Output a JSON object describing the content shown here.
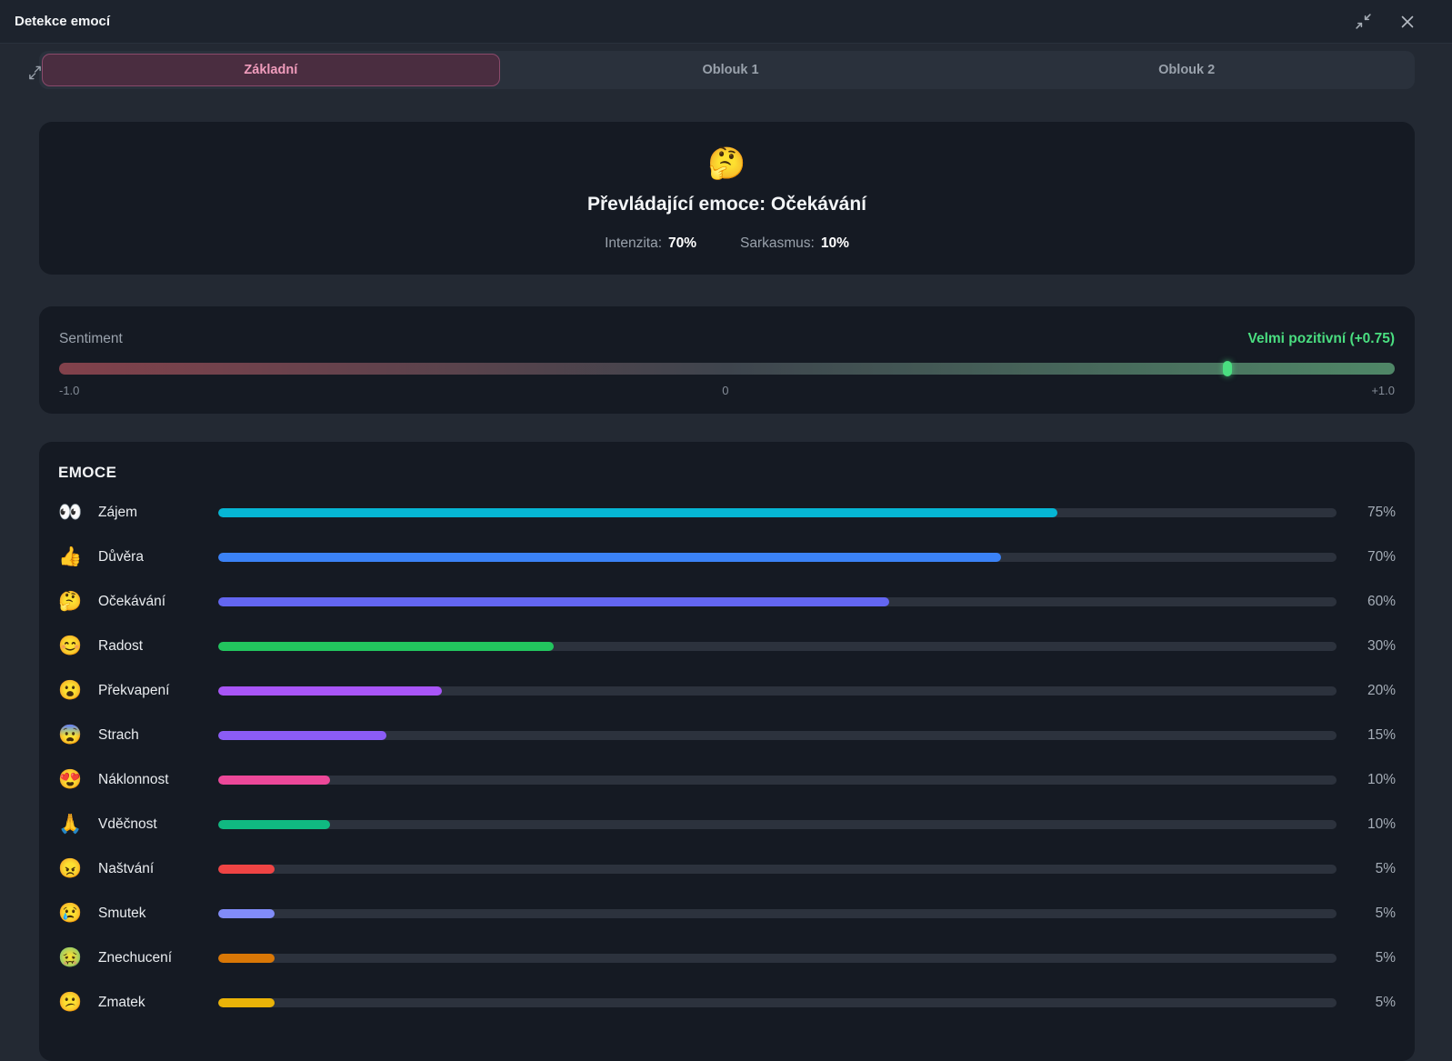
{
  "window": {
    "title": "Detekce emocí"
  },
  "theme": {
    "page_bg": "#232933",
    "card_bg": "#151a23",
    "titlebar_bg": "#1d232d",
    "tabbar_bg": "#2a313c",
    "active_tab_bg": "#4a2d40",
    "active_tab_border": "#8a4a6b",
    "active_tab_text": "#f09cbc",
    "text_muted": "#9aa2ac",
    "text_bright": "#f3f5f7",
    "track_bg": "#2c323d",
    "positive": "#4ade80"
  },
  "tabs": [
    {
      "label": "Základní",
      "active": true
    },
    {
      "label": "Oblouk 1",
      "active": false
    },
    {
      "label": "Oblouk 2",
      "active": false
    }
  ],
  "dominant": {
    "emoji": "🤔",
    "title": "Převládající emoce: Očekávání",
    "intensity_label": "Intenzita:",
    "intensity_value": "70%",
    "sarcasm_label": "Sarkasmus:",
    "sarcasm_value": "10%"
  },
  "sentiment": {
    "label": "Sentiment",
    "value_label": "Velmi pozitivní (+0.75)",
    "value": 0.75,
    "min": -1.0,
    "max": 1.0,
    "scale": [
      "-1.0",
      "0",
      "+1.0"
    ],
    "gradient": [
      "#82414b",
      "#3e444d",
      "#4f8767"
    ],
    "marker_color": "#4ade80",
    "positive_color": "#4ade80"
  },
  "emotions": {
    "heading": "EMOCE",
    "items": [
      {
        "emoji": "👀",
        "label": "Zájem",
        "percent": 75,
        "percent_label": "75%",
        "color": "#06b6d4"
      },
      {
        "emoji": "👍",
        "label": "Důvěra",
        "percent": 70,
        "percent_label": "70%",
        "color": "#3b82f6"
      },
      {
        "emoji": "🤔",
        "label": "Očekávání",
        "percent": 60,
        "percent_label": "60%",
        "color": "#6366f1"
      },
      {
        "emoji": "😊",
        "label": "Radost",
        "percent": 30,
        "percent_label": "30%",
        "color": "#22c55e"
      },
      {
        "emoji": "😮",
        "label": "Překvapení",
        "percent": 20,
        "percent_label": "20%",
        "color": "#a855f7"
      },
      {
        "emoji": "😨",
        "label": "Strach",
        "percent": 15,
        "percent_label": "15%",
        "color": "#8b5cf6"
      },
      {
        "emoji": "😍",
        "label": "Náklonnost",
        "percent": 10,
        "percent_label": "10%",
        "color": "#ec4899"
      },
      {
        "emoji": "🙏",
        "label": "Vděčnost",
        "percent": 10,
        "percent_label": "10%",
        "color": "#10b981"
      },
      {
        "emoji": "😠",
        "label": "Naštvání",
        "percent": 5,
        "percent_label": "5%",
        "color": "#ef4444"
      },
      {
        "emoji": "😢",
        "label": "Smutek",
        "percent": 5,
        "percent_label": "5%",
        "color": "#818cf8"
      },
      {
        "emoji": "🤢",
        "label": "Znechucení",
        "percent": 5,
        "percent_label": "5%",
        "color": "#d97706"
      },
      {
        "emoji": "😕",
        "label": "Zmatek",
        "percent": 5,
        "percent_label": "5%",
        "color": "#eab308"
      }
    ]
  }
}
